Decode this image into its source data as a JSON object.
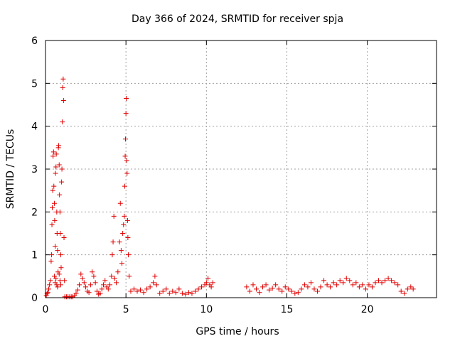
{
  "chart_data": {
    "type": "scatter",
    "title": "Day 366 of 2024, SRMTID for receiver spja",
    "xlabel": "GPS time / hours",
    "ylabel": "SRMTID / TECUs",
    "xlim": [
      0,
      24.3
    ],
    "ylim": [
      0,
      6
    ],
    "xticks": [
      0,
      5,
      10,
      15,
      20
    ],
    "yticks": [
      0,
      1,
      2,
      3,
      4,
      5,
      6
    ],
    "grid": true,
    "marker": "+",
    "color": "#e00000",
    "series": [
      {
        "name": "SRMTID",
        "points": [
          [
            0.05,
            0.05
          ],
          [
            0.1,
            0.1
          ],
          [
            0.15,
            0.12
          ],
          [
            0.2,
            0.2
          ],
          [
            0.25,
            0.3
          ],
          [
            0.3,
            0.4
          ],
          [
            0.35,
            0.85
          ],
          [
            0.38,
            1.0
          ],
          [
            0.4,
            1.7
          ],
          [
            0.42,
            2.1
          ],
          [
            0.45,
            2.5
          ],
          [
            0.47,
            3.3
          ],
          [
            0.5,
            3.4
          ],
          [
            0.52,
            2.6
          ],
          [
            0.55,
            2.2
          ],
          [
            0.57,
            1.8
          ],
          [
            0.6,
            1.2
          ],
          [
            0.62,
            2.9
          ],
          [
            0.65,
            3.05
          ],
          [
            0.67,
            3.35
          ],
          [
            0.7,
            2.0
          ],
          [
            0.72,
            1.5
          ],
          [
            0.75,
            1.1
          ],
          [
            0.78,
            0.6
          ],
          [
            0.8,
            3.5
          ],
          [
            0.82,
            3.55
          ],
          [
            0.85,
            3.1
          ],
          [
            0.87,
            2.4
          ],
          [
            0.9,
            2.0
          ],
          [
            0.92,
            1.5
          ],
          [
            0.95,
            1.0
          ],
          [
            0.97,
            0.7
          ],
          [
            1.0,
            2.7
          ],
          [
            1.02,
            3.0
          ],
          [
            1.05,
            4.1
          ],
          [
            1.07,
            4.9
          ],
          [
            1.1,
            5.1
          ],
          [
            1.12,
            4.6
          ],
          [
            1.15,
            1.4
          ],
          [
            1.18,
            0.4
          ],
          [
            0.55,
            0.5
          ],
          [
            0.6,
            0.35
          ],
          [
            0.65,
            0.45
          ],
          [
            0.7,
            0.3
          ],
          [
            0.75,
            0.25
          ],
          [
            0.85,
            0.55
          ],
          [
            0.9,
            0.4
          ],
          [
            0.95,
            0.3
          ],
          [
            1.2,
            0.02
          ],
          [
            1.3,
            0.02
          ],
          [
            1.4,
            0.02
          ],
          [
            1.5,
            0.02
          ],
          [
            1.6,
            0.02
          ],
          [
            1.7,
            0.02
          ],
          [
            1.8,
            0.05
          ],
          [
            1.9,
            0.1
          ],
          [
            2.0,
            0.18
          ],
          [
            2.1,
            0.3
          ],
          [
            2.2,
            0.55
          ],
          [
            2.3,
            0.45
          ],
          [
            2.4,
            0.35
          ],
          [
            2.5,
            0.25
          ],
          [
            2.6,
            0.15
          ],
          [
            2.7,
            0.12
          ],
          [
            2.8,
            0.3
          ],
          [
            2.9,
            0.6
          ],
          [
            3.0,
            0.5
          ],
          [
            3.1,
            0.35
          ],
          [
            3.2,
            0.15
          ],
          [
            3.3,
            0.08
          ],
          [
            3.4,
            0.1
          ],
          [
            3.5,
            0.2
          ],
          [
            3.6,
            0.3
          ],
          [
            3.7,
            0.4
          ],
          [
            3.8,
            0.25
          ],
          [
            3.9,
            0.2
          ],
          [
            4.0,
            0.3
          ],
          [
            4.1,
            0.5
          ],
          [
            4.15,
            1.0
          ],
          [
            4.2,
            1.3
          ],
          [
            4.25,
            1.9
          ],
          [
            4.3,
            0.45
          ],
          [
            4.4,
            0.35
          ],
          [
            4.5,
            0.6
          ],
          [
            4.6,
            1.3
          ],
          [
            4.65,
            2.2
          ],
          [
            4.7,
            1.1
          ],
          [
            4.75,
            0.8
          ],
          [
            4.8,
            1.5
          ],
          [
            4.85,
            1.7
          ],
          [
            4.9,
            1.9
          ],
          [
            4.92,
            2.6
          ],
          [
            4.95,
            3.3
          ],
          [
            4.97,
            3.7
          ],
          [
            5.0,
            4.3
          ],
          [
            5.02,
            4.65
          ],
          [
            5.05,
            3.2
          ],
          [
            5.07,
            2.9
          ],
          [
            5.1,
            1.8
          ],
          [
            5.12,
            1.4
          ],
          [
            5.15,
            1.0
          ],
          [
            5.2,
            0.5
          ],
          [
            5.3,
            0.15
          ],
          [
            5.5,
            0.2
          ],
          [
            5.7,
            0.15
          ],
          [
            5.9,
            0.18
          ],
          [
            6.1,
            0.12
          ],
          [
            6.3,
            0.2
          ],
          [
            6.5,
            0.25
          ],
          [
            6.7,
            0.35
          ],
          [
            6.8,
            0.5
          ],
          [
            6.9,
            0.3
          ],
          [
            7.1,
            0.1
          ],
          [
            7.3,
            0.15
          ],
          [
            7.5,
            0.2
          ],
          [
            7.7,
            0.1
          ],
          [
            7.9,
            0.15
          ],
          [
            8.1,
            0.12
          ],
          [
            8.3,
            0.2
          ],
          [
            8.5,
            0.1
          ],
          [
            8.7,
            0.08
          ],
          [
            8.9,
            0.12
          ],
          [
            9.1,
            0.1
          ],
          [
            9.3,
            0.15
          ],
          [
            9.5,
            0.2
          ],
          [
            9.7,
            0.25
          ],
          [
            9.9,
            0.3
          ],
          [
            10.0,
            0.35
          ],
          [
            10.1,
            0.45
          ],
          [
            10.2,
            0.3
          ],
          [
            10.3,
            0.25
          ],
          [
            10.4,
            0.35
          ],
          [
            12.5,
            0.25
          ],
          [
            12.7,
            0.15
          ],
          [
            12.9,
            0.3
          ],
          [
            13.1,
            0.2
          ],
          [
            13.3,
            0.12
          ],
          [
            13.5,
            0.25
          ],
          [
            13.7,
            0.3
          ],
          [
            13.9,
            0.18
          ],
          [
            14.1,
            0.22
          ],
          [
            14.3,
            0.3
          ],
          [
            14.5,
            0.2
          ],
          [
            14.7,
            0.15
          ],
          [
            14.9,
            0.25
          ],
          [
            15.1,
            0.2
          ],
          [
            15.3,
            0.15
          ],
          [
            15.5,
            0.1
          ],
          [
            15.7,
            0.12
          ],
          [
            15.9,
            0.2
          ],
          [
            16.1,
            0.3
          ],
          [
            16.3,
            0.25
          ],
          [
            16.5,
            0.35
          ],
          [
            16.7,
            0.2
          ],
          [
            16.9,
            0.15
          ],
          [
            17.1,
            0.25
          ],
          [
            17.3,
            0.4
          ],
          [
            17.5,
            0.3
          ],
          [
            17.7,
            0.25
          ],
          [
            17.9,
            0.35
          ],
          [
            18.1,
            0.3
          ],
          [
            18.3,
            0.4
          ],
          [
            18.5,
            0.35
          ],
          [
            18.7,
            0.45
          ],
          [
            18.9,
            0.4
          ],
          [
            19.1,
            0.3
          ],
          [
            19.3,
            0.35
          ],
          [
            19.5,
            0.25
          ],
          [
            19.7,
            0.3
          ],
          [
            19.9,
            0.2
          ],
          [
            20.1,
            0.3
          ],
          [
            20.3,
            0.25
          ],
          [
            20.5,
            0.35
          ],
          [
            20.7,
            0.4
          ],
          [
            20.9,
            0.35
          ],
          [
            21.1,
            0.4
          ],
          [
            21.3,
            0.45
          ],
          [
            21.5,
            0.4
          ],
          [
            21.7,
            0.35
          ],
          [
            21.9,
            0.3
          ],
          [
            22.1,
            0.15
          ],
          [
            22.3,
            0.1
          ],
          [
            22.5,
            0.2
          ],
          [
            22.7,
            0.25
          ],
          [
            22.85,
            0.2
          ]
        ]
      }
    ]
  }
}
